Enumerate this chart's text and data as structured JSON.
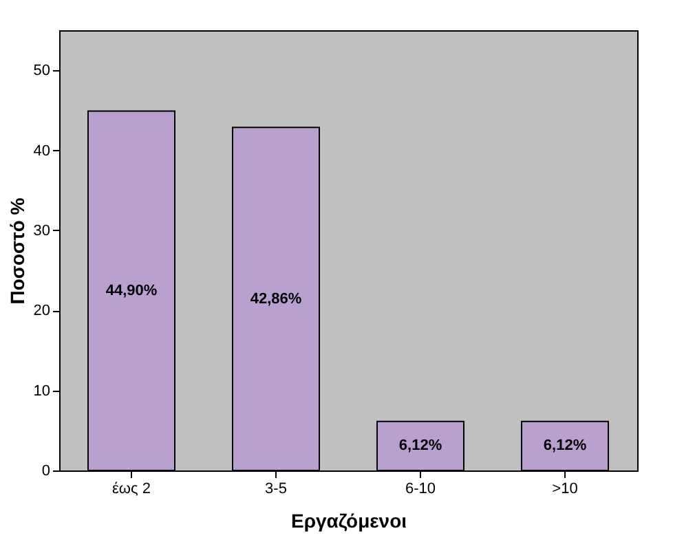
{
  "chart_data": {
    "type": "bar",
    "xlabel": "Εργαζόμενοι",
    "ylabel": "Ποσοστό %",
    "categories": [
      "έως 2",
      "3-5",
      "6-10",
      ">10"
    ],
    "values": [
      44.9,
      42.86,
      6.12,
      6.12
    ],
    "value_labels": [
      "44,90%",
      "42,86%",
      "6,12%",
      "6,12%"
    ],
    "color": "#b9a0cf",
    "ylim": [
      0,
      55
    ],
    "yticks": [
      0,
      10,
      20,
      30,
      40,
      50
    ],
    "grid": false
  }
}
